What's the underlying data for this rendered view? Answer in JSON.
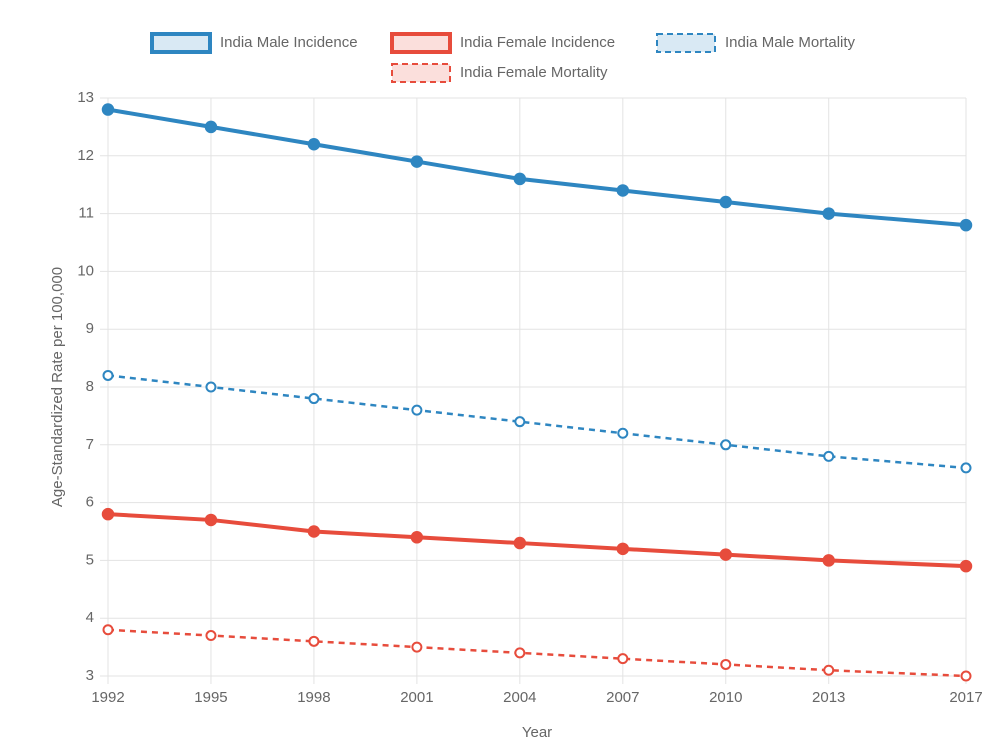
{
  "chart_data": {
    "type": "line",
    "x": [
      1992,
      1995,
      1998,
      2001,
      2004,
      2007,
      2010,
      2013,
      2017
    ],
    "xlim": [
      1992,
      2017
    ],
    "xticks": [
      1992,
      1995,
      1998,
      2001,
      2004,
      2007,
      2010,
      2013,
      2017
    ],
    "ylim": [
      3,
      13
    ],
    "yticks": [
      3,
      4,
      5,
      6,
      7,
      8,
      9,
      10,
      11,
      12,
      13
    ],
    "x_label": "Year",
    "y_label": "Age-Standardized Rate per 100,000",
    "grid": true,
    "legend": "top",
    "series": [
      {
        "name": "India Male Incidence",
        "color": "#2e86c1",
        "line_style": "solid",
        "values": [
          12.8,
          12.5,
          12.2,
          11.9,
          11.6,
          11.4,
          11.2,
          11.0,
          10.8
        ]
      },
      {
        "name": "India Female Incidence",
        "color": "#e74c3c",
        "line_style": "solid",
        "values": [
          5.8,
          5.7,
          5.5,
          5.4,
          5.3,
          5.2,
          5.1,
          5.0,
          4.9
        ]
      },
      {
        "name": "India Male Mortality",
        "color": "#2e86c1",
        "line_style": "dashed",
        "values": [
          8.2,
          8.0,
          7.8,
          7.6,
          7.4,
          7.2,
          7.0,
          6.8,
          6.6
        ]
      },
      {
        "name": "India Female Mortality",
        "color": "#e74c3c",
        "line_style": "dashed",
        "values": [
          3.8,
          3.7,
          3.6,
          3.5,
          3.4,
          3.3,
          3.2,
          3.1,
          3.0
        ]
      }
    ]
  }
}
